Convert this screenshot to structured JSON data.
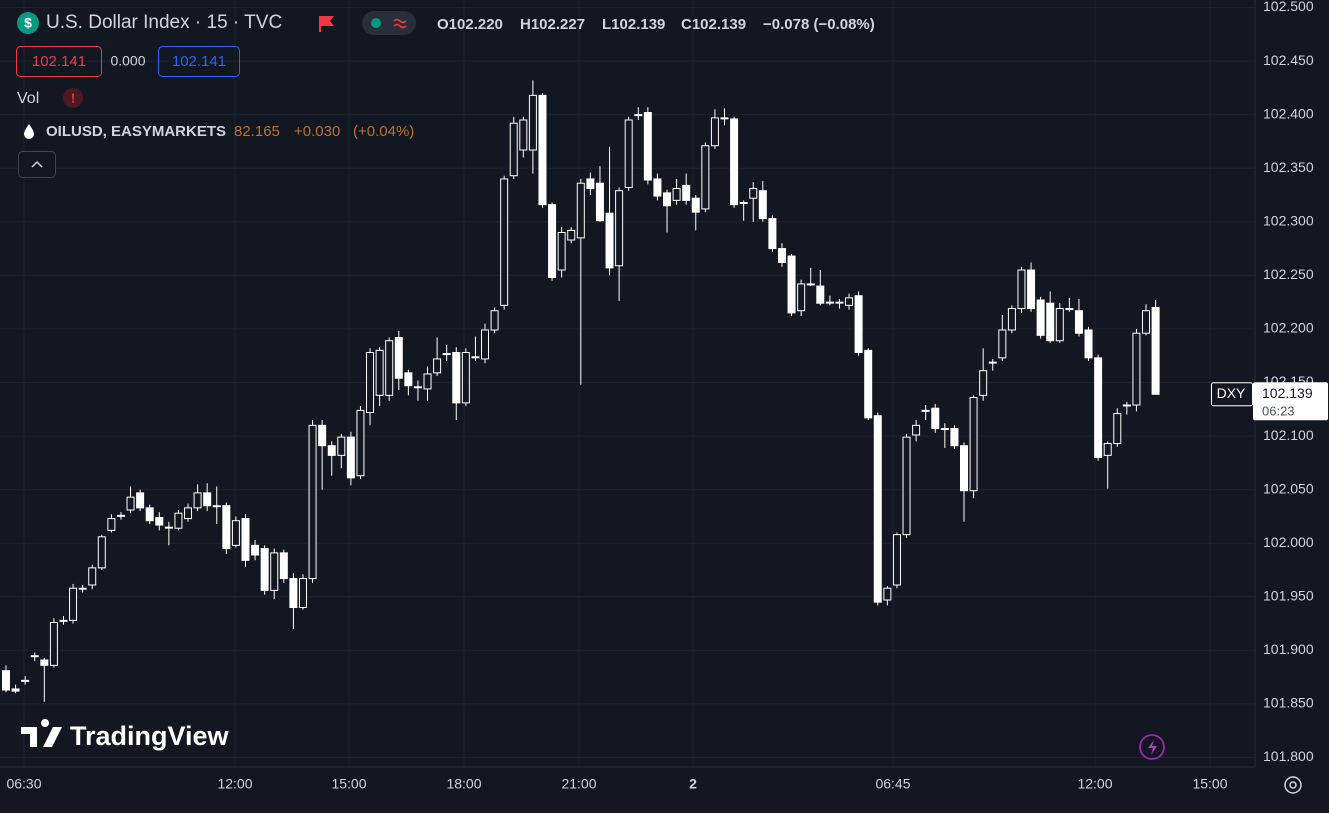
{
  "header": {
    "logo_icon": "$",
    "title": "U.S. Dollar Index · 15 · TVC",
    "ohlc": [
      "O102.220",
      "H102.227",
      "L102.139",
      "C102.139"
    ],
    "change": "−0.078 (−0.08%)",
    "price_boxes": [
      "102.141",
      "0.000",
      "102.141"
    ],
    "vol": "Vol",
    "alert": "!",
    "overlay": {
      "symbol": "OILUSD, EASYMARKETS",
      "price": "82.165",
      "change": "+0.030",
      "change_pct": "(+0.04%)"
    },
    "logo": "TradingView"
  },
  "chart_data": {
    "type": "candlestick",
    "color": "#ffffff",
    "last_price": {
      "symbol": "DXY",
      "value": 102.139,
      "countdown": "06:23"
    },
    "ylim": [
      101.793,
      102.507
    ],
    "yticks": [
      {
        "value": 101.8,
        "label": "101.800"
      },
      {
        "value": 101.85,
        "label": "101.850"
      },
      {
        "value": 101.9,
        "label": "101.900"
      },
      {
        "value": 101.95,
        "label": "101.950"
      },
      {
        "value": 102.0,
        "label": "102.000"
      },
      {
        "value": 102.05,
        "label": "102.050"
      },
      {
        "value": 102.1,
        "label": "102.100"
      },
      {
        "value": 102.15,
        "label": "102.150"
      },
      {
        "value": 102.2,
        "label": "102.200"
      },
      {
        "value": 102.25,
        "label": "102.250"
      },
      {
        "value": 102.3,
        "label": "102.300"
      },
      {
        "value": 102.35,
        "label": "102.350"
      },
      {
        "value": 102.4,
        "label": "102.400"
      },
      {
        "value": 102.45,
        "label": "102.450"
      },
      {
        "value": 102.5,
        "label": "102.500"
      }
    ],
    "grid": true,
    "xtick_labels": [
      "06:30",
      "12:00",
      "15:00",
      "18:00",
      "21:00",
      "2",
      "06:45",
      "12:00",
      "15:00"
    ],
    "open": [
      101.881,
      101.864,
      101.872,
      101.895,
      101.891,
      101.886,
      101.928,
      101.928,
      101.958,
      101.961,
      101.977,
      102.012,
      102.026,
      102.031,
      102.047,
      102.033,
      102.024,
      102.015,
      102.014,
      102.023,
      102.033,
      102.047,
      102.035,
      102.035,
      101.998,
      102.023,
      101.998,
      101.995,
      101.956,
      101.991,
      101.967,
      101.94,
      101.967,
      102.11,
      102.091,
      102.082,
      102.099,
      102.063,
      102.122,
      102.138,
      102.138,
      102.192,
      102.159,
      102.146,
      102.144,
      102.159,
      102.177,
      102.178,
      102.131,
      102.174,
      102.172,
      102.199,
      102.222,
      102.343,
      102.367,
      102.367,
      102.418,
      102.316,
      102.255,
      102.283,
      102.285,
      102.34,
      102.336,
      102.308,
      102.259,
      102.332,
      102.4,
      102.402,
      102.34,
      102.327,
      102.32,
      102.334,
      102.322,
      102.312,
      102.371,
      102.397,
      102.396,
      102.318,
      102.322,
      102.329,
      102.303,
      102.275,
      102.268,
      102.217,
      102.242,
      102.24,
      102.225,
      102.225,
      102.222,
      102.231,
      102.18,
      102.119,
      101.947,
      101.961,
      102.008,
      102.101,
      102.124,
      102.126,
      102.107,
      102.107,
      102.091,
      102.049,
      102.138,
      102.169,
      102.173,
      102.199,
      102.219,
      102.255,
      102.227,
      102.224,
      102.189,
      102.219,
      102.217,
      102.199,
      102.173,
      102.082,
      102.093,
      102.129,
      102.129,
      102.196,
      102.22
    ],
    "high": [
      101.886,
      101.868,
      101.876,
      101.898,
      101.893,
      101.93,
      101.932,
      101.962,
      101.961,
      101.98,
      102.008,
      102.027,
      102.029,
      102.053,
      102.05,
      102.036,
      102.029,
      102.02,
      102.031,
      102.037,
      102.055,
      102.056,
      102.053,
      102.038,
      102.025,
      102.027,
      102.003,
      101.998,
      101.995,
      101.994,
      101.972,
      101.971,
      102.115,
      102.115,
      102.095,
      102.102,
      102.104,
      102.128,
      102.182,
      102.183,
      102.192,
      102.198,
      102.162,
      102.152,
      102.165,
      102.192,
      102.185,
      102.183,
      102.182,
      102.193,
      102.205,
      102.22,
      102.343,
      102.398,
      102.398,
      102.432,
      102.42,
      102.318,
      102.295,
      102.295,
      102.34,
      102.346,
      102.352,
      102.37,
      102.332,
      102.398,
      102.407,
      102.407,
      102.345,
      102.33,
      102.34,
      102.345,
      102.325,
      102.374,
      102.405,
      102.406,
      102.398,
      102.32,
      102.337,
      102.338,
      102.306,
      102.28,
      102.27,
      102.246,
      102.257,
      102.255,
      102.231,
      102.228,
      102.233,
      102.235,
      102.182,
      102.122,
      101.96,
      102.01,
      102.102,
      102.115,
      102.129,
      102.13,
      102.112,
      102.11,
      102.094,
      102.138,
      102.182,
      102.172,
      102.213,
      102.222,
      102.258,
      102.262,
      102.23,
      102.235,
      102.224,
      102.229,
      102.228,
      102.202,
      102.176,
      102.095,
      102.126,
      102.132,
      102.2,
      102.223,
      102.227
    ],
    "low": [
      101.861,
      101.86,
      101.868,
      101.89,
      101.852,
      101.884,
      101.924,
      101.925,
      101.954,
      101.957,
      101.975,
      102.01,
      102.022,
      102.028,
      102.03,
      102.018,
      102.012,
      101.998,
      102.012,
      102.02,
      102.03,
      102.03,
      102.018,
      101.99,
      101.996,
      101.978,
      101.984,
      101.952,
      101.948,
      101.963,
      101.92,
      101.938,
      101.963,
      102.05,
      102.063,
      102.07,
      102.054,
      102.06,
      102.11,
      102.128,
      102.133,
      102.143,
      102.138,
      102.133,
      102.133,
      102.156,
      102.17,
      102.115,
      102.128,
      102.17,
      102.168,
      102.196,
      102.218,
      102.34,
      102.36,
      102.345,
      102.313,
      102.245,
      102.248,
      102.28,
      102.148,
      102.325,
      102.3,
      102.25,
      102.226,
      102.329,
      102.395,
      102.335,
      102.32,
      102.29,
      102.316,
      102.316,
      102.292,
      102.309,
      102.368,
      102.39,
      102.313,
      102.301,
      102.3,
      102.3,
      102.272,
      102.258,
      102.212,
      102.212,
      102.24,
      102.222,
      102.222,
      102.219,
      102.218,
      102.175,
      102.115,
      101.942,
      101.942,
      101.958,
      102.005,
      102.095,
      102.115,
      102.103,
      102.089,
      102.088,
      102.02,
      102.042,
      102.133,
      102.161,
      102.17,
      102.196,
      102.215,
      102.216,
      102.191,
      102.187,
      102.187,
      102.216,
      102.193,
      102.17,
      102.077,
      102.051,
      102.09,
      102.12,
      102.123,
      102.194,
      102.139
    ],
    "close": [
      101.863,
      101.862,
      101.872,
      101.895,
      101.886,
      101.926,
      101.928,
      101.958,
      101.958,
      101.977,
      102.006,
      102.023,
      102.026,
      102.043,
      102.033,
      102.021,
      102.017,
      102.015,
      102.028,
      102.033,
      102.047,
      102.035,
      102.035,
      101.995,
      102.021,
      101.984,
      101.989,
      101.956,
      101.991,
      101.967,
      101.94,
      101.967,
      102.11,
      102.091,
      102.082,
      102.099,
      102.061,
      102.124,
      102.178,
      102.18,
      102.189,
      102.154,
      102.147,
      102.146,
      102.158,
      102.172,
      102.177,
      102.131,
      102.178,
      102.174,
      102.199,
      102.217,
      102.34,
      102.392,
      102.395,
      102.418,
      102.316,
      102.248,
      102.29,
      102.292,
      102.336,
      102.331,
      102.301,
      102.257,
      102.329,
      102.395,
      102.4,
      102.339,
      102.324,
      102.315,
      102.331,
      102.32,
      102.309,
      102.371,
      102.397,
      102.397,
      102.316,
      102.318,
      102.331,
      102.303,
      102.275,
      102.262,
      102.215,
      102.242,
      102.242,
      102.224,
      102.225,
      102.225,
      102.229,
      102.178,
      102.117,
      101.945,
      101.958,
      102.008,
      102.099,
      102.11,
      102.124,
      102.107,
      102.107,
      102.091,
      102.049,
      102.136,
      102.161,
      102.169,
      102.199,
      102.219,
      102.255,
      102.219,
      102.194,
      102.189,
      102.219,
      102.219,
      102.196,
      102.173,
      102.08,
      102.093,
      102.121,
      102.129,
      102.196,
      102.217,
      102.139
    ]
  }
}
